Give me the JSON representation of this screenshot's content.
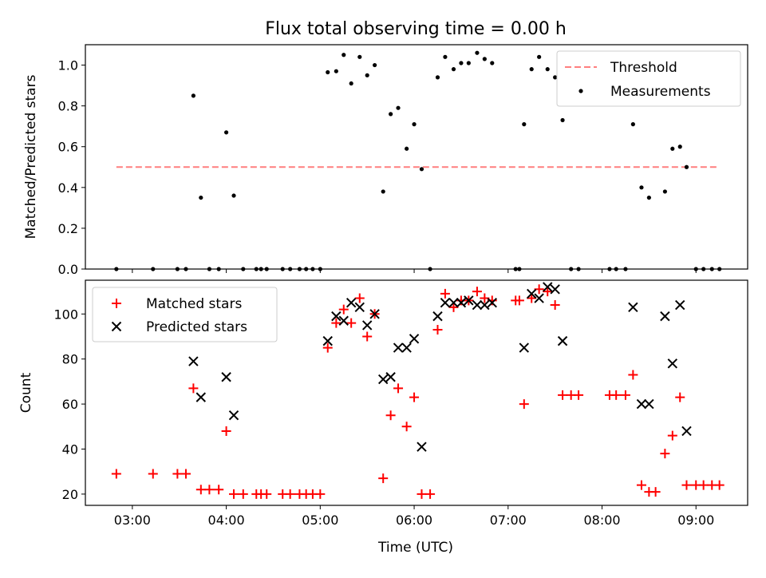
{
  "chart_data": {
    "type": "scatter",
    "title": "Flux total observing time = 0.00 h",
    "xlabel": "Time (UTC)",
    "xticks": [
      "03:00",
      "04:00",
      "05:00",
      "06:00",
      "07:00",
      "08:00",
      "09:00"
    ],
    "xlim_hours": [
      2.5,
      9.55
    ],
    "panels": [
      {
        "ylabel": "Matched/Predicted stars",
        "ylim": [
          0,
          1.1
        ],
        "yticks": [
          "0.0",
          "0.2",
          "0.4",
          "0.6",
          "0.8",
          "1.0"
        ],
        "legend_position": "top-right",
        "threshold": {
          "name": "Threshold",
          "value": 0.5,
          "x_range_hours": [
            2.83,
            9.25
          ],
          "color": "#ff7f7f"
        },
        "series": [
          {
            "name": "Measurements",
            "color": "#000000",
            "x_hours": [
              2.83,
              3.22,
              3.48,
              3.57,
              3.65,
              3.73,
              3.82,
              3.92,
              4.0,
              4.08,
              4.18,
              4.32,
              4.37,
              4.43,
              4.6,
              4.68,
              4.78,
              4.85,
              4.92,
              5.0,
              5.08,
              5.17,
              5.25,
              5.33,
              5.42,
              5.5,
              5.58,
              5.67,
              5.75,
              5.83,
              5.92,
              6.0,
              6.08,
              6.17,
              6.25,
              6.33,
              6.42,
              6.5,
              6.58,
              6.67,
              6.75,
              6.83,
              7.08,
              7.12,
              7.17,
              7.25,
              7.33,
              7.42,
              7.5,
              7.58,
              7.67,
              7.75,
              8.08,
              8.15,
              8.25,
              8.33,
              8.42,
              8.5,
              8.67,
              8.75,
              8.83,
              8.9,
              9.0,
              9.08,
              9.17,
              9.25
            ],
            "y": [
              0.0,
              0.0,
              0.0,
              0.0,
              0.85,
              0.35,
              0.0,
              0.0,
              0.67,
              0.36,
              0.0,
              0.0,
              0.0,
              0.0,
              0.0,
              0.0,
              0.0,
              0.0,
              0.0,
              0.0,
              0.965,
              0.97,
              1.05,
              0.91,
              1.04,
              0.95,
              1.0,
              0.38,
              0.76,
              0.79,
              0.59,
              0.71,
              0.49,
              0.0,
              0.94,
              1.04,
              0.98,
              1.01,
              1.01,
              1.06,
              1.03,
              1.01,
              0.0,
              0.0,
              0.71,
              0.98,
              1.04,
              0.98,
              0.94,
              0.73,
              0.0,
              0.0,
              0.0,
              0.0,
              0.0,
              0.71,
              0.4,
              0.35,
              0.38,
              0.59,
              0.6,
              0.5,
              0.0,
              0.0,
              0.0,
              0.0
            ]
          }
        ]
      },
      {
        "ylabel": "Count",
        "ylim": [
          15,
          115
        ],
        "yticks": [
          "20",
          "40",
          "60",
          "80",
          "100"
        ],
        "legend_position": "top-left",
        "series": [
          {
            "name": "Matched stars",
            "marker": "plus",
            "color": "#ff0000",
            "x_hours": [
              2.83,
              3.22,
              3.48,
              3.57,
              3.65,
              3.73,
              3.82,
              3.92,
              4.0,
              4.08,
              4.18,
              4.32,
              4.37,
              4.43,
              4.6,
              4.68,
              4.78,
              4.85,
              4.92,
              5.0,
              5.08,
              5.17,
              5.25,
              5.33,
              5.42,
              5.5,
              5.58,
              5.67,
              5.75,
              5.83,
              5.92,
              6.0,
              6.08,
              6.17,
              6.25,
              6.33,
              6.42,
              6.5,
              6.58,
              6.67,
              6.75,
              6.83,
              7.08,
              7.12,
              7.17,
              7.25,
              7.33,
              7.42,
              7.5,
              7.58,
              7.67,
              7.75,
              8.08,
              8.15,
              8.25,
              8.33,
              8.42,
              8.5,
              8.57,
              8.67,
              8.75,
              8.83,
              8.9,
              9.0,
              9.08,
              9.17,
              9.25
            ],
            "y": [
              29,
              29,
              29,
              29,
              67,
              22,
              22,
              22,
              48,
              20,
              20,
              20,
              20,
              20,
              20,
              20,
              20,
              20,
              20,
              20,
              85,
              96,
              102,
              96,
              107,
              90,
              100,
              27,
              55,
              67,
              50,
              63,
              20,
              20,
              93,
              109,
              103,
              106,
              106,
              110,
              107,
              106,
              106,
              106,
              60,
              107,
              111,
              110,
              104,
              64,
              64,
              64,
              64,
              64,
              64,
              73,
              24,
              21,
              21,
              38,
              46,
              63,
              24,
              24,
              24,
              24,
              24
            ]
          },
          {
            "name": "Predicted stars",
            "marker": "x",
            "color": "#000000",
            "x_hours": [
              3.65,
              3.73,
              4.0,
              4.08,
              5.08,
              5.17,
              5.25,
              5.33,
              5.42,
              5.5,
              5.58,
              5.67,
              5.75,
              5.83,
              5.92,
              6.0,
              6.08,
              6.25,
              6.33,
              6.42,
              6.5,
              6.58,
              6.67,
              6.75,
              6.83,
              7.17,
              7.25,
              7.33,
              7.42,
              7.5,
              7.58,
              8.33,
              8.42,
              8.5,
              8.67,
              8.75,
              8.83,
              8.9
            ],
            "y": [
              79,
              63,
              72,
              55,
              88,
              99,
              97,
              105,
              103,
              95,
              100,
              71,
              72,
              85,
              85,
              89,
              41,
              99,
              105,
              105,
              105,
              106,
              104,
              104,
              105,
              85,
              109,
              107,
              112,
              111,
              88,
              103,
              60,
              60,
              99,
              78,
              104,
              48
            ]
          }
        ]
      }
    ]
  }
}
